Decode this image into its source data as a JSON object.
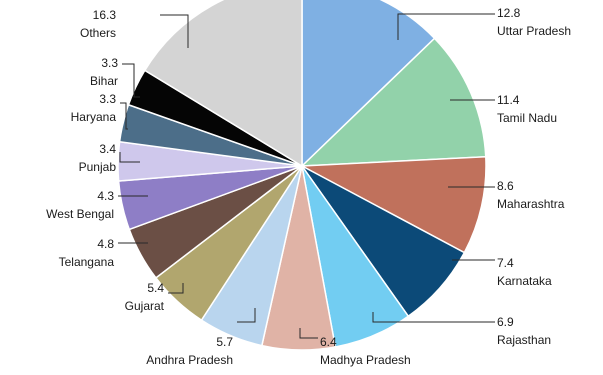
{
  "chart_data": {
    "type": "pie",
    "title": "",
    "unit": "",
    "slices": [
      {
        "label": "Uttar Pradesh",
        "value": 12.8,
        "value_text": "12.8",
        "color": "#7fb0e3"
      },
      {
        "label": "Tamil Nadu",
        "value": 11.4,
        "value_text": "11.4",
        "color": "#92d2aa"
      },
      {
        "label": "Maharashtra",
        "value": 8.6,
        "value_text": "8.6",
        "color": "#c0715c"
      },
      {
        "label": "Karnataka",
        "value": 7.4,
        "value_text": "7.4",
        "color": "#0c4a78"
      },
      {
        "label": "Rajasthan",
        "value": 6.9,
        "value_text": "6.9",
        "color": "#72cdf2"
      },
      {
        "label": "Madhya Pradesh",
        "value": 6.4,
        "value_text": "6.4",
        "color": "#e0b3a6"
      },
      {
        "label": "Andhra Pradesh",
        "value": 5.7,
        "value_text": "5.7",
        "color": "#b9d5ee"
      },
      {
        "label": "Gujarat",
        "value": 5.4,
        "value_text": "5.4",
        "color": "#b1a66e"
      },
      {
        "label": "Telangana",
        "value": 4.8,
        "value_text": "4.8",
        "color": "#6b4f45"
      },
      {
        "label": "West Bengal",
        "value": 4.3,
        "value_text": "4.3",
        "color": "#8e7ec6"
      },
      {
        "label": "Punjab",
        "value": 3.4,
        "value_text": "3.4",
        "color": "#cfc8ec"
      },
      {
        "label": "Haryana",
        "value": 3.3,
        "value_text": "3.3",
        "color": "#4c6e89"
      },
      {
        "label": "Bihar",
        "value": 3.3,
        "value_text": "3.3",
        "color": "#050505"
      },
      {
        "label": "Others",
        "value": 16.3,
        "value_text": "16.3",
        "color": "#d4d4d4"
      }
    ]
  }
}
